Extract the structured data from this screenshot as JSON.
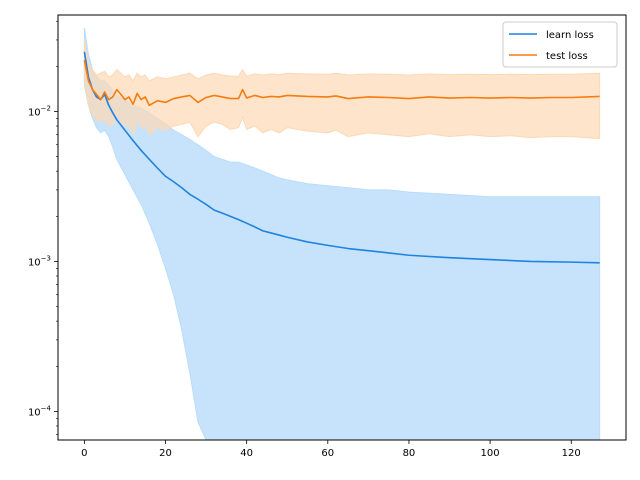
{
  "chart_data": {
    "type": "line",
    "title": "",
    "xlabel": "",
    "ylabel": "",
    "yscale": "log",
    "xlim": [
      -6.5,
      133.5
    ],
    "ylim": [
      6.45e-05,
      0.044
    ],
    "xticks": [
      0,
      20,
      40,
      60,
      80,
      100,
      120
    ],
    "yticks": [
      {
        "value": 0.0001,
        "base": "10",
        "exp": "−4"
      },
      {
        "value": 0.001,
        "base": "10",
        "exp": "−3"
      },
      {
        "value": 0.01,
        "base": "10",
        "exp": "−2"
      }
    ],
    "grid": false,
    "legend_position": "top-right",
    "series": [
      {
        "name": "learn loss",
        "color": "#1f83e0",
        "band_color": "#b9dcfb",
        "x": [
          0,
          1,
          2,
          3,
          4,
          5,
          6,
          7,
          8,
          10,
          12,
          14,
          16,
          18,
          20,
          22,
          24,
          26,
          28,
          30,
          32,
          34,
          36,
          38,
          40,
          42,
          44,
          46,
          48,
          50,
          55,
          60,
          65,
          70,
          75,
          80,
          90,
          100,
          110,
          120,
          127
        ],
        "mean": [
          0.025,
          0.017,
          0.014,
          0.0125,
          0.012,
          0.013,
          0.011,
          0.0098,
          0.0088,
          0.0075,
          0.0064,
          0.0055,
          0.0048,
          0.0042,
          0.0037,
          0.0034,
          0.0031,
          0.0028,
          0.0026,
          0.0024,
          0.0022,
          0.0021,
          0.002,
          0.0019,
          0.0018,
          0.0017,
          0.0016,
          0.00155,
          0.0015,
          0.00145,
          0.00135,
          0.00128,
          0.00122,
          0.00118,
          0.00114,
          0.0011,
          0.00106,
          0.00103,
          0.001,
          0.00099,
          0.00098
        ],
        "upper": [
          0.036,
          0.024,
          0.019,
          0.017,
          0.016,
          0.016,
          0.015,
          0.0138,
          0.0128,
          0.012,
          0.011,
          0.0105,
          0.0098,
          0.009,
          0.0083,
          0.0075,
          0.007,
          0.0065,
          0.006,
          0.0055,
          0.005,
          0.0048,
          0.0046,
          0.0046,
          0.0044,
          0.0042,
          0.004,
          0.0038,
          0.0036,
          0.0035,
          0.0033,
          0.0032,
          0.0031,
          0.003,
          0.003,
          0.0029,
          0.0028,
          0.0027,
          0.0027,
          0.0027,
          0.0027
        ],
        "lower": [
          0.015,
          0.011,
          0.009,
          0.0078,
          0.0072,
          0.0075,
          0.0068,
          0.0058,
          0.0048,
          0.0038,
          0.003,
          0.0024,
          0.0018,
          0.0013,
          0.0009,
          0.0006,
          0.00035,
          0.00018,
          8.5e-05,
          6.45e-05,
          6.45e-05,
          6.45e-05,
          6.45e-05,
          6.45e-05,
          6.45e-05,
          6.45e-05,
          6.45e-05,
          6.45e-05,
          6.45e-05,
          6.45e-05,
          6.45e-05,
          6.45e-05,
          6.45e-05,
          6.45e-05,
          6.45e-05,
          6.45e-05,
          6.45e-05,
          6.45e-05,
          6.45e-05,
          6.45e-05,
          6.45e-05
        ]
      },
      {
        "name": "test loss",
        "color": "#f57c0f",
        "band_color": "#fdd8b5",
        "x": [
          0,
          1,
          2,
          3,
          4,
          5,
          6,
          7,
          8,
          9,
          10,
          11,
          12,
          13,
          14,
          15,
          16,
          18,
          20,
          22,
          24,
          26,
          28,
          30,
          32,
          34,
          36,
          38,
          39,
          40,
          42,
          44,
          46,
          48,
          50,
          55,
          60,
          62,
          65,
          70,
          75,
          80,
          85,
          90,
          95,
          100,
          105,
          110,
          115,
          120,
          127
        ],
        "mean": [
          0.022,
          0.016,
          0.014,
          0.013,
          0.012,
          0.0135,
          0.012,
          0.0125,
          0.014,
          0.013,
          0.012,
          0.0125,
          0.0112,
          0.0132,
          0.012,
          0.0125,
          0.011,
          0.0118,
          0.0115,
          0.0122,
          0.0125,
          0.0128,
          0.0115,
          0.0124,
          0.0128,
          0.0125,
          0.0122,
          0.0122,
          0.014,
          0.0123,
          0.0128,
          0.0124,
          0.0126,
          0.0125,
          0.0128,
          0.0126,
          0.0125,
          0.0127,
          0.0122,
          0.0125,
          0.0124,
          0.0122,
          0.0125,
          0.0123,
          0.0124,
          0.0123,
          0.0124,
          0.0123,
          0.0124,
          0.0124,
          0.0126
        ],
        "upper": [
          0.03,
          0.021,
          0.019,
          0.0175,
          0.018,
          0.0185,
          0.017,
          0.0175,
          0.019,
          0.018,
          0.017,
          0.0175,
          0.016,
          0.018,
          0.017,
          0.0175,
          0.016,
          0.017,
          0.0165,
          0.017,
          0.0175,
          0.018,
          0.0165,
          0.0175,
          0.018,
          0.0175,
          0.0172,
          0.0172,
          0.019,
          0.0172,
          0.0178,
          0.0175,
          0.0178,
          0.0176,
          0.018,
          0.0178,
          0.0177,
          0.018,
          0.0175,
          0.0178,
          0.0177,
          0.0175,
          0.0178,
          0.0176,
          0.0177,
          0.0176,
          0.0177,
          0.0176,
          0.0177,
          0.0177,
          0.018
        ],
        "lower": [
          0.016,
          0.011,
          0.0095,
          0.0088,
          0.0085,
          0.009,
          0.008,
          0.0082,
          0.0095,
          0.0085,
          0.008,
          0.0082,
          0.007,
          0.0088,
          0.0078,
          0.0082,
          0.007,
          0.0078,
          0.0075,
          0.008,
          0.0082,
          0.0085,
          0.0068,
          0.008,
          0.0085,
          0.0082,
          0.0076,
          0.0078,
          0.0092,
          0.0076,
          0.008,
          0.0072,
          0.0076,
          0.0072,
          0.0078,
          0.0074,
          0.0072,
          0.0075,
          0.0068,
          0.0072,
          0.007,
          0.0068,
          0.0071,
          0.0068,
          0.007,
          0.0068,
          0.0069,
          0.0067,
          0.0068,
          0.0068,
          0.0066
        ]
      }
    ]
  }
}
